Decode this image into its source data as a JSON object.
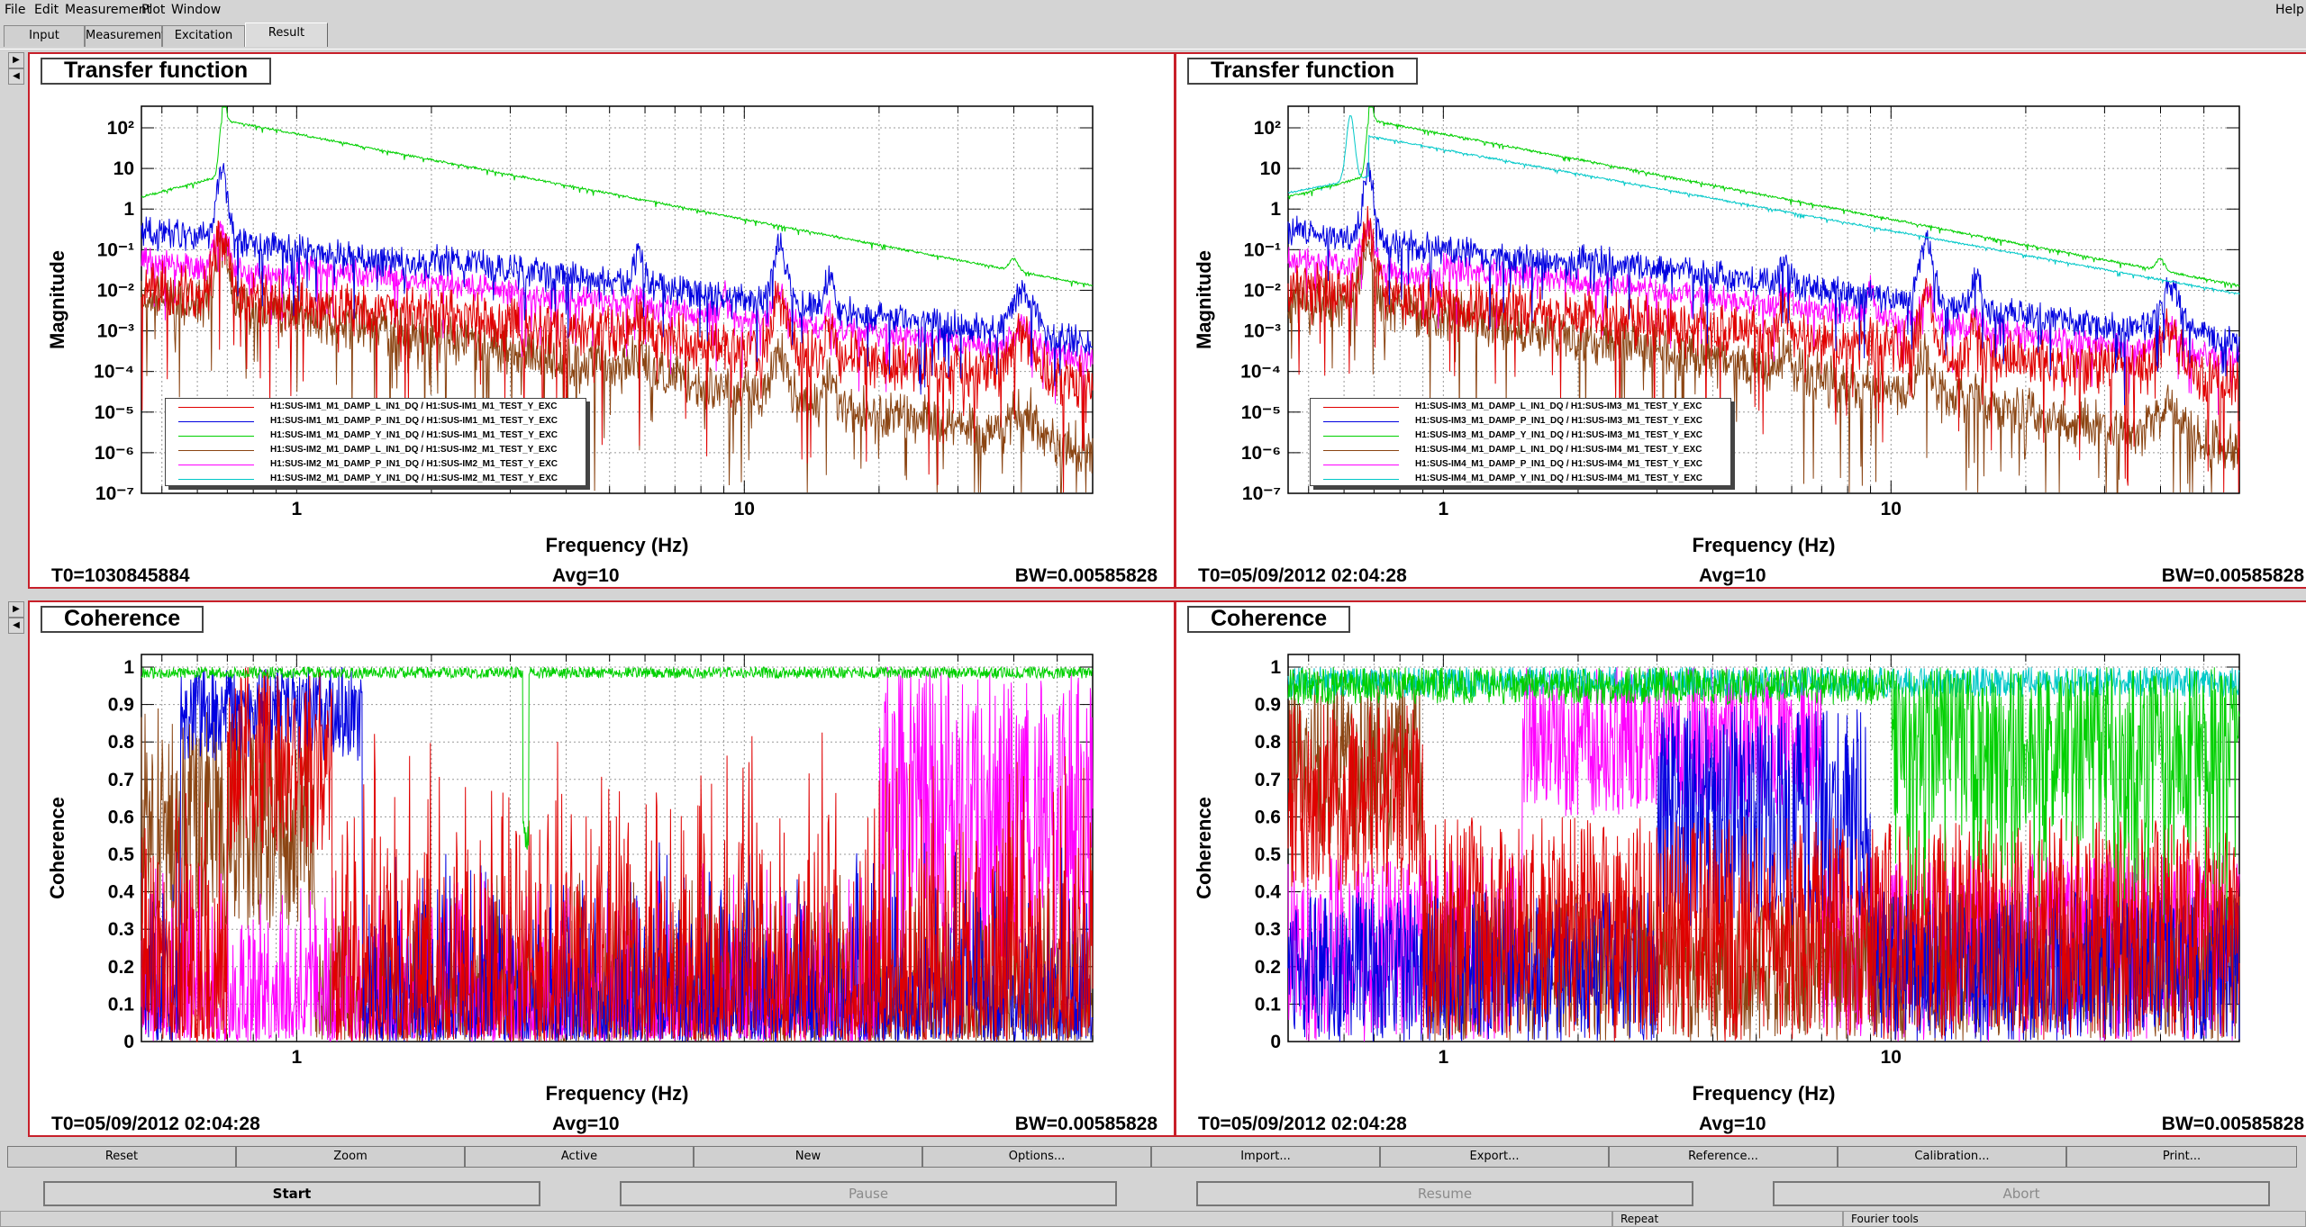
{
  "menu": [
    "File",
    "Edit",
    "Measurement",
    "Plot",
    "Window"
  ],
  "help_label": "Help",
  "tabs": [
    {
      "label": "Input",
      "active": false
    },
    {
      "label": "Measurement",
      "active": false
    },
    {
      "label": "Excitation",
      "active": false
    },
    {
      "label": "Result",
      "active": true
    }
  ],
  "panels": [
    {
      "title": "Transfer function",
      "ylabel": "Magnitude",
      "xlabel": "Frequency (Hz)",
      "yticks": [
        "10²",
        "10",
        "1",
        "10⁻¹",
        "10⁻²",
        "10⁻³",
        "10⁻⁴",
        "10⁻⁵",
        "10⁻⁶",
        "10⁻⁷"
      ],
      "xticks": [
        "1",
        "10"
      ],
      "legend": [
        {
          "label": "H1:SUS-IM1_M1_DAMP_L_IN1_DQ / H1:SUS-IM1_M1_TEST_Y_EXC",
          "color": "#e00000"
        },
        {
          "label": "H1:SUS-IM1_M1_DAMP_P_IN1_DQ / H1:SUS-IM1_M1_TEST_Y_EXC",
          "color": "#0000e0"
        },
        {
          "label": "H1:SUS-IM1_M1_DAMP_Y_IN1_DQ / H1:SUS-IM1_M1_TEST_Y_EXC",
          "color": "#00d000"
        },
        {
          "label": "H1:SUS-IM2_M1_DAMP_L_IN1_DQ / H1:SUS-IM2_M1_TEST_Y_EXC",
          "color": "#8b4513"
        },
        {
          "label": "H1:SUS-IM2_M1_DAMP_P_IN1_DQ / H1:SUS-IM2_M1_TEST_Y_EXC",
          "color": "#ff00ff"
        },
        {
          "label": "H1:SUS-IM2_M1_DAMP_Y_IN1_DQ / H1:SUS-IM2_M1_TEST_Y_EXC",
          "color": "#00c8c8"
        }
      ],
      "t0": "T0=1030845884",
      "avg": "Avg=10",
      "bw": "BW=0.00585828"
    },
    {
      "title": "Transfer function",
      "ylabel": "Magnitude",
      "xlabel": "Frequency (Hz)",
      "yticks": [
        "10²",
        "10",
        "1",
        "10⁻¹",
        "10⁻²",
        "10⁻³",
        "10⁻⁴",
        "10⁻⁵",
        "10⁻⁶",
        "10⁻⁷"
      ],
      "xticks": [
        "1",
        "10"
      ],
      "legend": [
        {
          "label": "H1:SUS-IM3_M1_DAMP_L_IN1_DQ / H1:SUS-IM3_M1_TEST_Y_EXC",
          "color": "#e00000"
        },
        {
          "label": "H1:SUS-IM3_M1_DAMP_P_IN1_DQ / H1:SUS-IM3_M1_TEST_Y_EXC",
          "color": "#0000e0"
        },
        {
          "label": "H1:SUS-IM3_M1_DAMP_Y_IN1_DQ / H1:SUS-IM3_M1_TEST_Y_EXC",
          "color": "#00d000"
        },
        {
          "label": "H1:SUS-IM4_M1_DAMP_L_IN1_DQ / H1:SUS-IM4_M1_TEST_Y_EXC",
          "color": "#8b4513"
        },
        {
          "label": "H1:SUS-IM4_M1_DAMP_P_IN1_DQ / H1:SUS-IM4_M1_TEST_Y_EXC",
          "color": "#ff00ff"
        },
        {
          "label": "H1:SUS-IM4_M1_DAMP_Y_IN1_DQ / H1:SUS-IM4_M1_TEST_Y_EXC",
          "color": "#00c8c8"
        }
      ],
      "t0": "T0=05/09/2012 02:04:28",
      "avg": "Avg=10",
      "bw": "BW=0.00585828"
    },
    {
      "title": "Coherence",
      "ylabel": "Coherence",
      "xlabel": "Frequency (Hz)",
      "yticks": [
        "1",
        "0.9",
        "0.8",
        "0.7",
        "0.6",
        "0.5",
        "0.4",
        "0.3",
        "0.2",
        "0.1",
        "0"
      ],
      "xticks": [
        "1"
      ],
      "t0": "T0=05/09/2012 02:04:28",
      "avg": "Avg=10",
      "bw": "BW=0.00585828"
    },
    {
      "title": "Coherence",
      "ylabel": "Coherence",
      "xlabel": "Frequency (Hz)",
      "yticks": [
        "1",
        "0.9",
        "0.8",
        "0.7",
        "0.6",
        "0.5",
        "0.4",
        "0.3",
        "0.2",
        "0.1",
        "0"
      ],
      "xticks": [
        "1",
        "10"
      ],
      "t0": "T0=05/09/2012 02:04:28",
      "avg": "Avg=10",
      "bw": "BW=0.00585828"
    }
  ],
  "plot_buttons": [
    "Reset",
    "Zoom",
    "Active",
    "New",
    "Options...",
    "Import...",
    "Export...",
    "Reference...",
    "Calibration...",
    "Print..."
  ],
  "control_buttons": [
    "Start",
    "Pause",
    "Resume",
    "Abort"
  ],
  "status_fields": [
    "Repeat",
    "Fourier tools"
  ],
  "colors": {
    "red": "#e00000",
    "blue": "#0000e0",
    "green": "#00d000",
    "brown": "#8b4513",
    "magenta": "#ff00ff",
    "cyan": "#00c8c8",
    "panel_border": "#c8202a"
  }
}
